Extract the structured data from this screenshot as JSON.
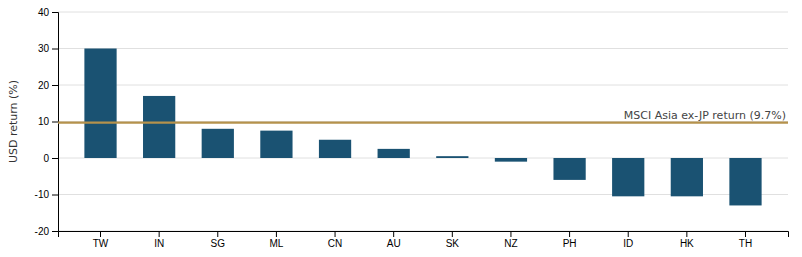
{
  "chart_data": {
    "type": "bar",
    "categories": [
      "TW",
      "IN",
      "SG",
      "ML",
      "CN",
      "AU",
      "SK",
      "NZ",
      "PH",
      "ID",
      "HK",
      "TH"
    ],
    "values": [
      30.0,
      17.0,
      8.0,
      7.5,
      5.0,
      2.5,
      0.5,
      -1.0,
      -6.0,
      -10.5,
      -10.5,
      -13.0
    ],
    "color": "#1a5272",
    "y_label": "USD return (%)",
    "ylim": [
      -20,
      40
    ],
    "yticks": [
      -20,
      -10,
      0,
      10,
      20,
      30,
      40
    ],
    "grid": true,
    "benchmark": {
      "value": 9.7,
      "label": "MSCI Asia ex-JP return (9.7%)",
      "color": "#b5924c"
    }
  }
}
